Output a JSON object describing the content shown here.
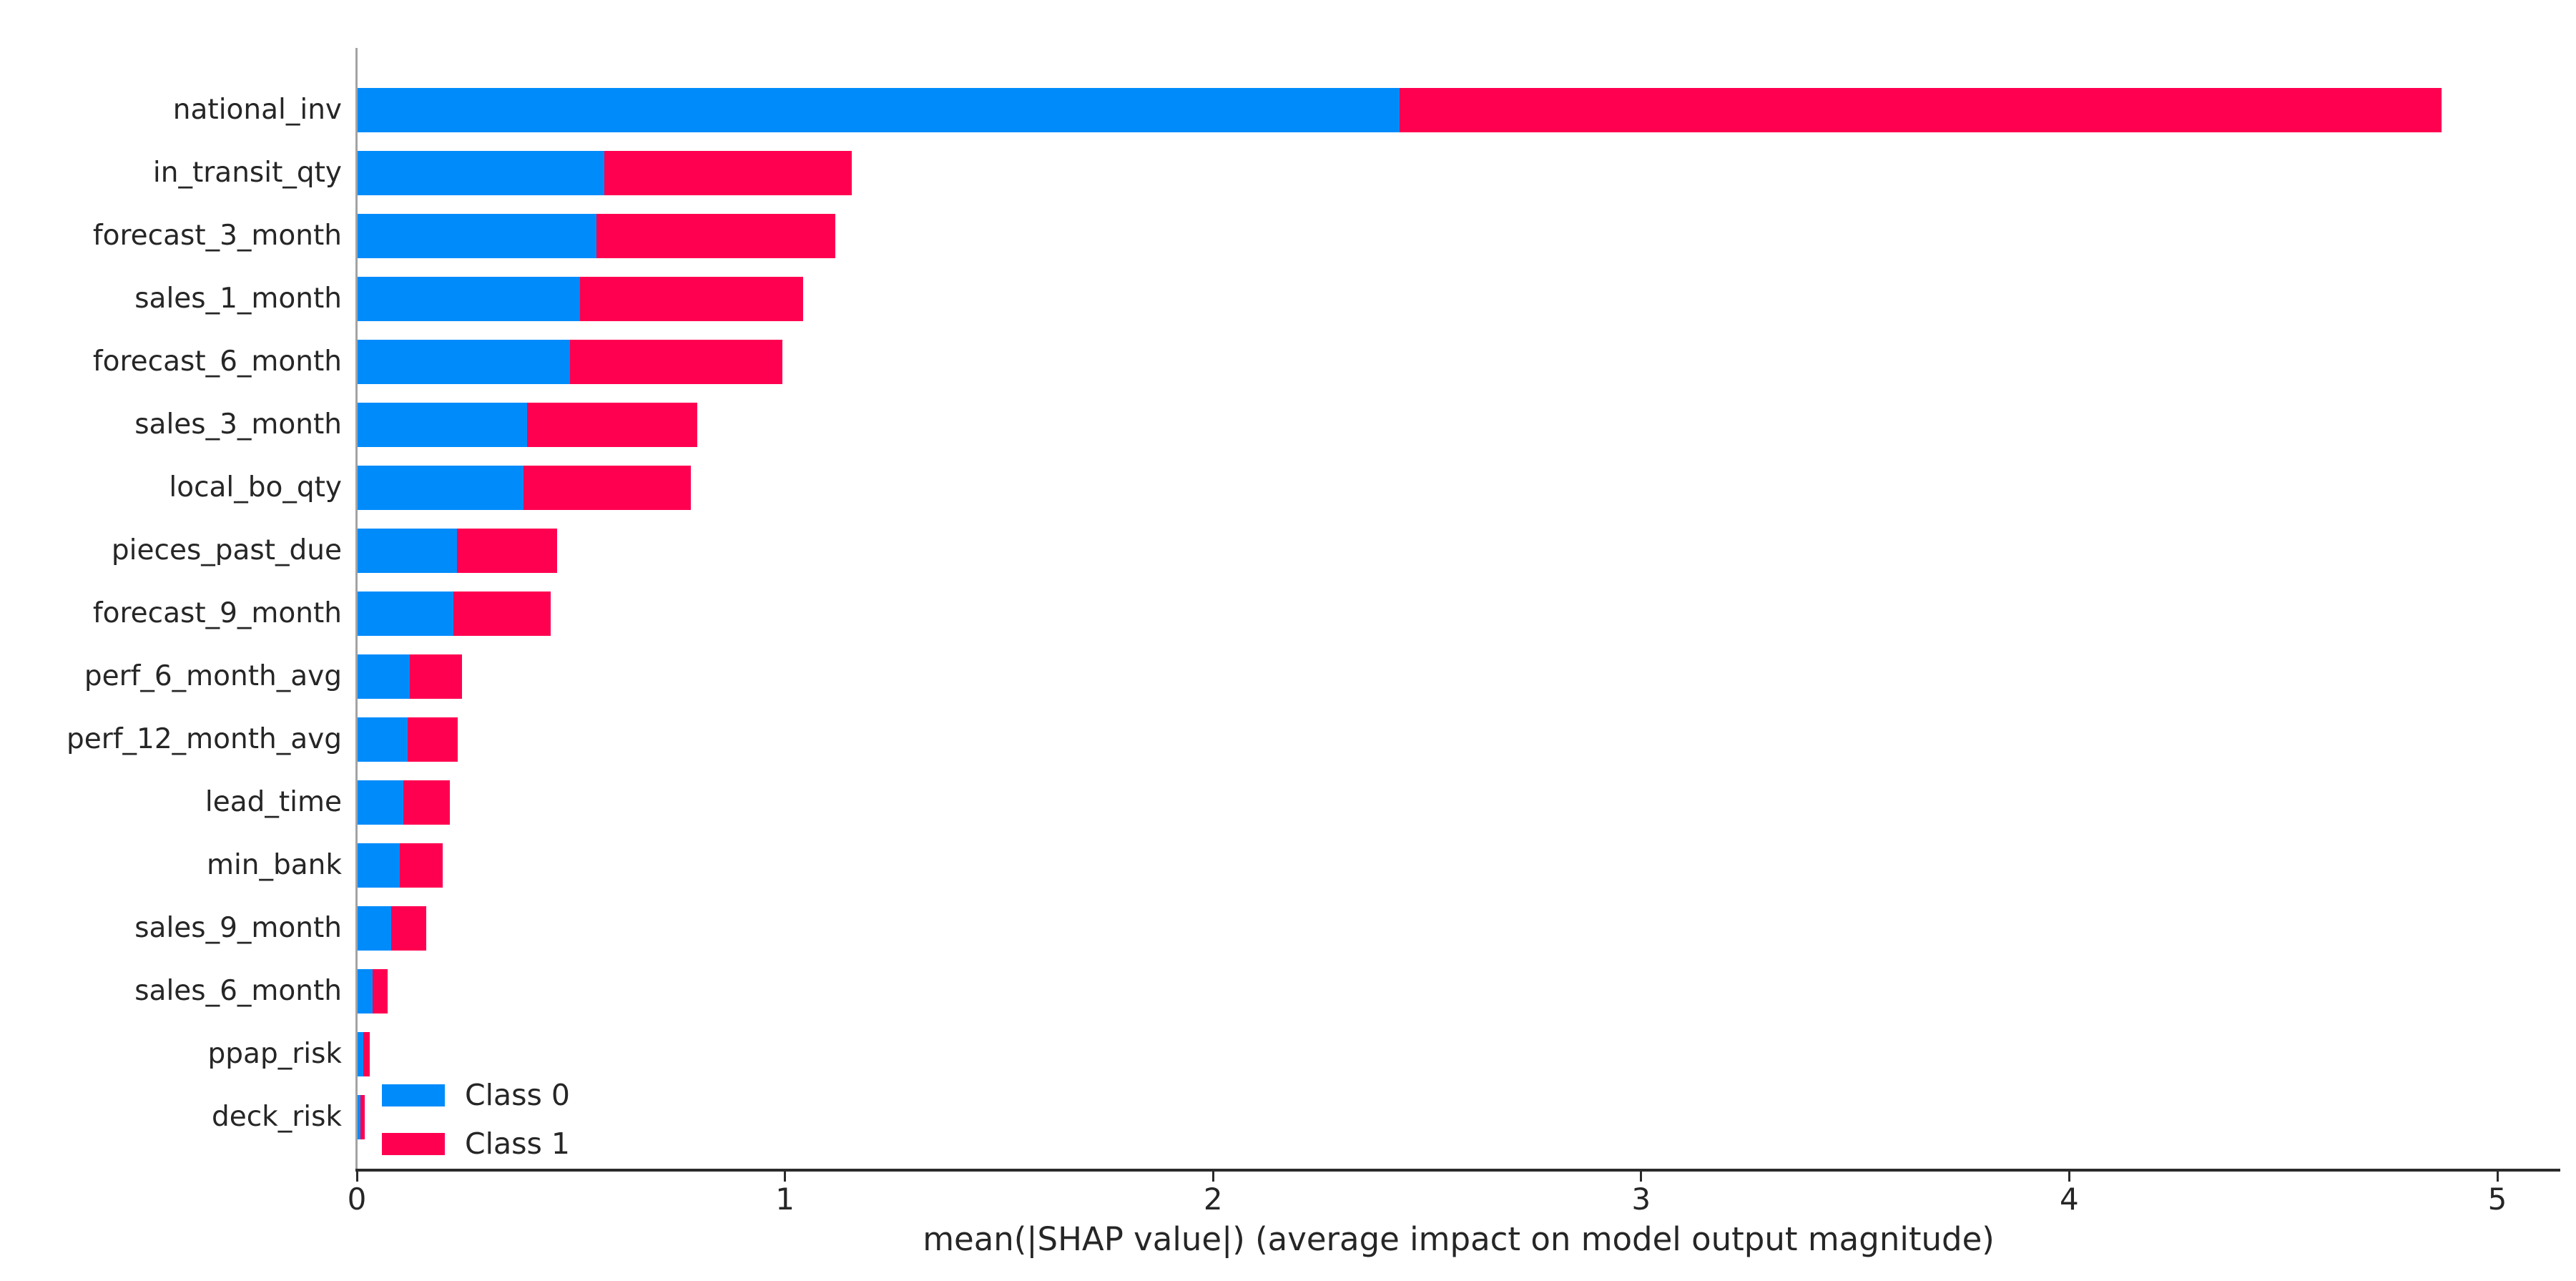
{
  "chart_data": {
    "type": "bar",
    "orientation": "horizontal",
    "stacked": true,
    "title": "",
    "xlabel": "mean(|SHAP value|) (average impact on model output magnitude)",
    "ylabel": "",
    "grid": false,
    "xlim": [
      0,
      5.15
    ],
    "x_ticks": [
      "0",
      "1",
      "2",
      "3",
      "4",
      "5"
    ],
    "x_tick_values": [
      0,
      1,
      2,
      3,
      4,
      5
    ],
    "legend_position": "lower-left-inside-plot",
    "categories": [
      "national_inv",
      "in_transit_qty",
      "forecast_3_month",
      "sales_1_month",
      "forecast_6_month",
      "sales_3_month",
      "local_bo_qty",
      "pieces_past_due",
      "forecast_9_month",
      "perf_6_month_avg",
      "perf_12_month_avg",
      "lead_time",
      "min_bank",
      "sales_9_month",
      "sales_6_month",
      "ppap_risk",
      "deck_risk"
    ],
    "series": [
      {
        "name": "Class 0",
        "color": "#008BFB",
        "values": [
          2.435,
          0.578,
          0.559,
          0.521,
          0.497,
          0.398,
          0.39,
          0.234,
          0.226,
          0.123,
          0.118,
          0.109,
          0.1,
          0.081,
          0.036,
          0.015,
          0.009
        ]
      },
      {
        "name": "Class 1",
        "color": "#FF0051",
        "values": [
          2.435,
          0.578,
          0.559,
          0.521,
          0.497,
          0.398,
          0.39,
          0.234,
          0.226,
          0.123,
          0.118,
          0.109,
          0.1,
          0.081,
          0.036,
          0.015,
          0.009
        ]
      }
    ]
  }
}
